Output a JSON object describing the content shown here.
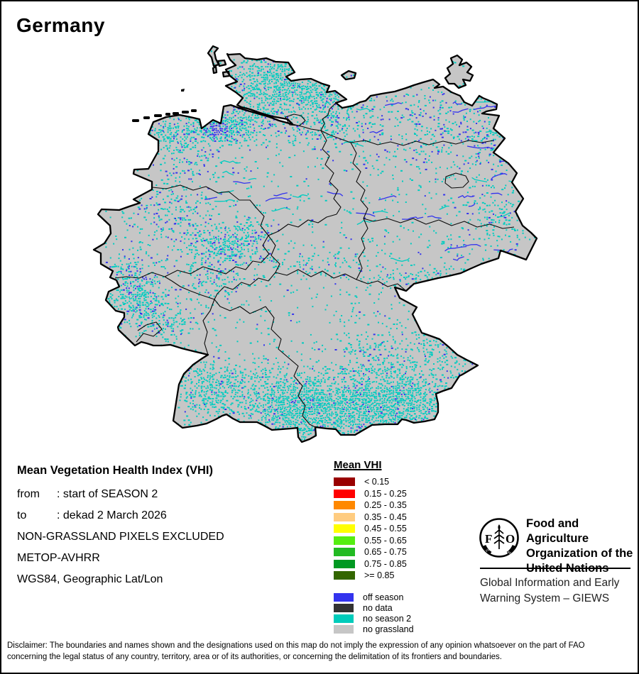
{
  "page": {
    "title": "Germany"
  },
  "info": {
    "heading": "Mean Vegetation Health Index (VHI)",
    "rows": [
      {
        "label": "from",
        "sep": ": ",
        "value": "start of SEASON 2"
      },
      {
        "label": "to",
        "sep": ": ",
        "value": "dekad 2 March 2026"
      }
    ],
    "lines": [
      "NON-GRASSLAND PIXELS EXCLUDED",
      "METOP-AVHRR",
      "WGS84, Geographic Lat/Lon"
    ]
  },
  "legend": {
    "title": "Mean VHI",
    "classes": [
      {
        "label": "< 0.15",
        "color": "#990000"
      },
      {
        "label": "0.15 - 0.25",
        "color": "#FF0000"
      },
      {
        "label": "0.25 - 0.35",
        "color": "#FF8800"
      },
      {
        "label": "0.35 - 0.45",
        "color": "#FFCC80"
      },
      {
        "label": "0.45 - 0.55",
        "color": "#FFFF00"
      },
      {
        "label": "0.55 - 0.65",
        "color": "#55EE11"
      },
      {
        "label": "0.65 - 0.75",
        "color": "#22BB22"
      },
      {
        "label": "0.75 - 0.85",
        "color": "#009922"
      },
      {
        "label": ">= 0.85",
        "color": "#336600"
      }
    ],
    "status_classes": [
      {
        "label": "off season",
        "color": "#3333EE"
      },
      {
        "label": "no data",
        "color": "#333333"
      },
      {
        "label": "no season 2",
        "color": "#00CCBB"
      },
      {
        "label": "no grassland",
        "color": "#C6C6C6"
      }
    ]
  },
  "org": {
    "fao_name_lines": [
      "Food and Agriculture",
      "Organization of the",
      "United Nations"
    ],
    "giews_lines": [
      "Global Information and Early",
      "Warning System – GIEWS"
    ]
  },
  "disclaimer_lines": [
    "Disclaimer: The boundaries and names shown and the designations used on this map do not imply the expression of any opinion whatsoever on the part of FAO",
    "concerning the legal status of any country, territory, area or of its authorities, or concerning the delimitation of its frontiers and boundaries."
  ],
  "map": {
    "region": "Germany",
    "colors": {
      "land": "#C6C6C6",
      "border": "#000000",
      "no_season_2_speckle": "#00CCC0",
      "off_season_speckle": "#3333EE",
      "sea": "#FFFFFF"
    }
  }
}
